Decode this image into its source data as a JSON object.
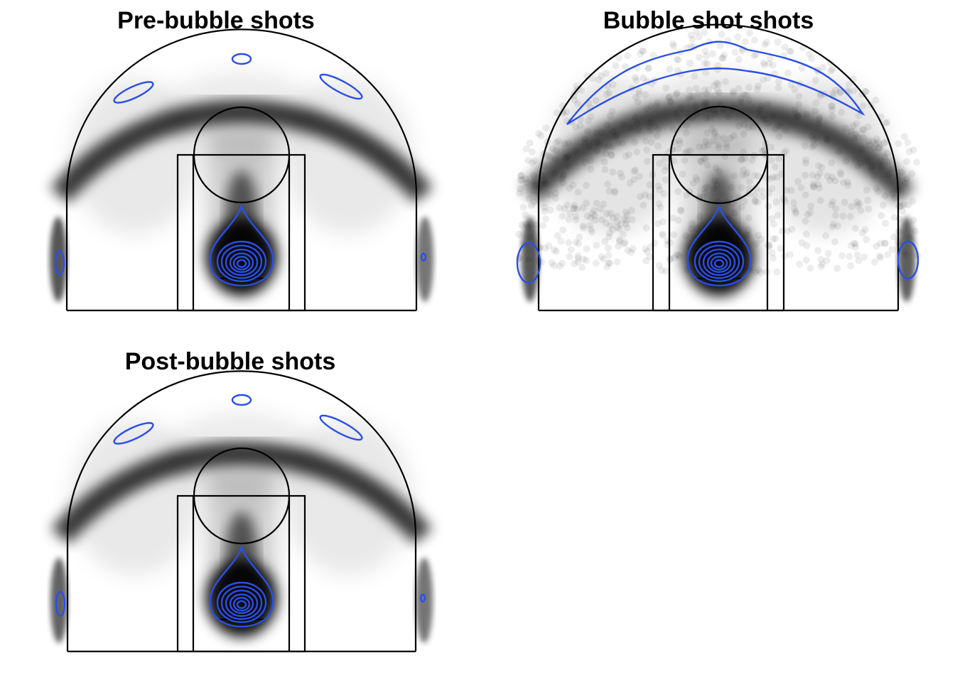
{
  "colors": {
    "background": "#ffffff",
    "shot_density": "#000000",
    "contour": "#2a4fe8",
    "court_lines": "#000000"
  },
  "chart_data": [
    {
      "type": "heatmap",
      "title": "Pre-bubble shots",
      "xlabel": "",
      "ylabel": "",
      "axes_visible": false,
      "grid": false,
      "overlay": "court-lines",
      "point_alpha": "low (dense shot cloud)",
      "hotspots": [
        {
          "zone": "restricted-area",
          "intensity": 1.0
        },
        {
          "zone": "above-break-three",
          "intensity": 0.85
        },
        {
          "zone": "left-corner-three",
          "intensity": 0.7
        },
        {
          "zone": "right-corner-three",
          "intensity": 0.6
        },
        {
          "zone": "paint",
          "intensity": 0.45
        },
        {
          "zone": "mid-range",
          "intensity": 0.25
        }
      ]
    },
    {
      "type": "scatter",
      "title": "Bubble shot shots",
      "xlabel": "",
      "ylabel": "",
      "axes_visible": false,
      "grid": false,
      "overlay": "court-lines",
      "point_alpha": "medium (sparser, individual points visible)",
      "hotspots": [
        {
          "zone": "restricted-area",
          "intensity": 1.0
        },
        {
          "zone": "above-break-three",
          "intensity": 0.8
        },
        {
          "zone": "left-corner-three",
          "intensity": 0.7
        },
        {
          "zone": "right-corner-three",
          "intensity": 0.7
        },
        {
          "zone": "paint",
          "intensity": 0.4
        },
        {
          "zone": "mid-range",
          "intensity": 0.3
        }
      ]
    },
    {
      "type": "heatmap",
      "title": "Post-bubble shots",
      "xlabel": "",
      "ylabel": "",
      "axes_visible": false,
      "grid": false,
      "overlay": "court-lines",
      "point_alpha": "low (dense shot cloud)",
      "hotspots": [
        {
          "zone": "restricted-area",
          "intensity": 1.0
        },
        {
          "zone": "above-break-three",
          "intensity": 0.85
        },
        {
          "zone": "left-corner-three",
          "intensity": 0.65
        },
        {
          "zone": "right-corner-three",
          "intensity": 0.6
        },
        {
          "zone": "paint",
          "intensity": 0.45
        },
        {
          "zone": "mid-range",
          "intensity": 0.25
        }
      ]
    }
  ]
}
